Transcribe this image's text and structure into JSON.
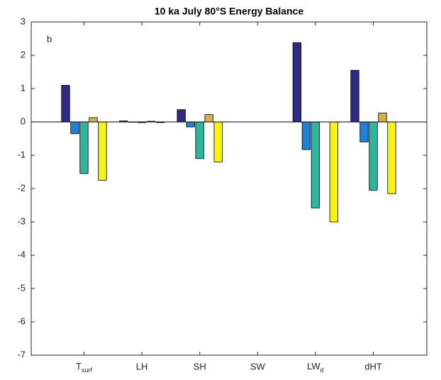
{
  "chart_data": {
    "type": "bar",
    "title": "10 ka July 80°S Energy Balance",
    "annotation": "b",
    "categories": [
      {
        "text": "T",
        "sub": "surf"
      },
      "LH",
      "SH",
      "SW",
      {
        "text": "LW",
        "sub": "d"
      },
      "dHT"
    ],
    "series": [
      {
        "color": "#2e2a86",
        "values": [
          1.1,
          0.03,
          0.37,
          0,
          2.38,
          1.55
        ]
      },
      {
        "color": "#1f80d6",
        "values": [
          -0.35,
          -0.01,
          -0.15,
          0,
          -0.83,
          -0.6
        ]
      },
      {
        "color": "#2db69b",
        "values": [
          -1.55,
          -0.02,
          -1.1,
          0,
          -2.58,
          -2.05
        ]
      },
      {
        "color": "#d3b04c",
        "values": [
          0.13,
          0.02,
          0.22,
          0,
          0,
          0.27
        ]
      },
      {
        "color": "#f6f214",
        "values": [
          -1.75,
          -0.02,
          -1.2,
          0,
          -3.0,
          -2.15
        ]
      }
    ],
    "ylim": [
      -7,
      3
    ],
    "yticks": [
      -7,
      -6,
      -5,
      -4,
      -3,
      -2,
      -1,
      0,
      1,
      2,
      3
    ],
    "grid": false
  }
}
